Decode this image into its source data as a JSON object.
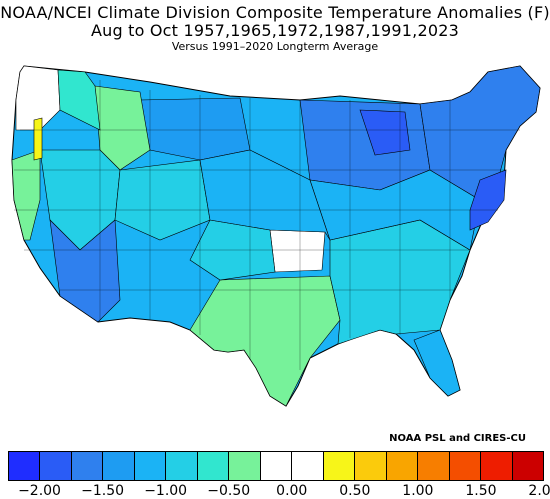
{
  "title": {
    "line1": "NOAA/NCEI Climate Division Composite Temperature Anomalies (F)",
    "line2": "Aug to Oct  1957,1965,1972,1987,1991,2023",
    "line3": "Versus 1991–2020 Longterm Average"
  },
  "credit": "NOAA PSL and CIRES-CU",
  "legend": {
    "colors": [
      "#1f2dff",
      "#2a5cf6",
      "#2f80ee",
      "#1e9cf2",
      "#1bb3f5",
      "#24cfe6",
      "#31e6cf",
      "#77f29a",
      "#ffffff",
      "#ffffff",
      "#f7f519",
      "#fbcb0c",
      "#f9a500",
      "#f77e00",
      "#f44e00",
      "#ee1d00",
      "#cc0000"
    ],
    "ticks": [
      "−2.00",
      "−1.50",
      "−1.00",
      "−0.50",
      "0.00",
      "0.50",
      "1.00",
      "1.50",
      "2.00"
    ]
  },
  "regions": [
    {
      "name": "pacific-northwest-coast",
      "anomaly": "+0 to +0.25",
      "color": "#ffffff"
    },
    {
      "name": "western-oregon",
      "anomaly": "0 to -0.25",
      "color": "#ffffff"
    },
    {
      "name": "oregon-cascades",
      "anomaly": "+0.25 to +0.5",
      "color": "#f7f519"
    },
    {
      "name": "california-coast",
      "anomaly": "-0.5 to -0.75",
      "color": "#77f29a"
    },
    {
      "name": "great-basin",
      "anomaly": "-1.0 to -1.25",
      "color": "#1bb3f5"
    },
    {
      "name": "southwest-desert",
      "anomaly": "-1.25 to -1.5",
      "color": "#1e9cf2"
    },
    {
      "name": "rockies-north",
      "anomaly": "-1.0 to -1.25",
      "color": "#1bb3f5"
    },
    {
      "name": "northern-plains",
      "anomaly": "-1.0 to -1.25",
      "color": "#1bb3f5"
    },
    {
      "name": "kansas-center",
      "anomaly": "0 to -0.25",
      "color": "#ffffff"
    },
    {
      "name": "texas-oklahoma",
      "anomaly": "-0.5 to -0.75",
      "color": "#77f29a"
    },
    {
      "name": "great-lakes",
      "anomaly": "-1.5 to -1.75",
      "color": "#2f80ee"
    },
    {
      "name": "upper-michigan",
      "anomaly": "-1.75 to -2.0",
      "color": "#2a5cf6"
    },
    {
      "name": "southeast",
      "anomaly": "-0.75 to -1.0",
      "color": "#24cfe6"
    },
    {
      "name": "northeast",
      "anomaly": "-1.5 to -1.75",
      "color": "#2f80ee"
    },
    {
      "name": "mid-atlantic",
      "anomaly": "-1.75 to -2.0",
      "color": "#2a5cf6"
    },
    {
      "name": "florida",
      "anomaly": "-1.0 to -1.25",
      "color": "#1bb3f5"
    }
  ]
}
